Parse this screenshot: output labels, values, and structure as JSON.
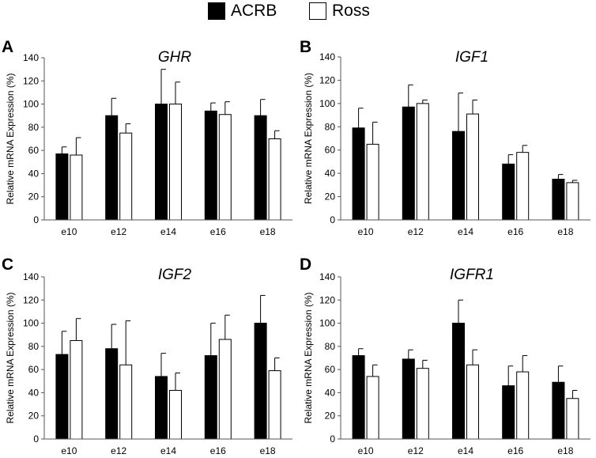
{
  "legend": [
    {
      "label": "ACRB",
      "color": "#000000"
    },
    {
      "label": "Ross",
      "color": "#ffffff"
    }
  ],
  "chart_data": [
    {
      "type": "bar",
      "panel_letter": "A",
      "title": "GHR",
      "ylabel": "Relative  mRNA Expression (%)",
      "xlabel": "",
      "ylim": [
        0,
        140
      ],
      "yticks": [
        "0",
        "20",
        "40",
        "60",
        "80",
        "100",
        "120",
        "140"
      ],
      "categories": [
        "e10",
        "e12",
        "e14",
        "e16",
        "e18"
      ],
      "series": [
        {
          "name": "ACRB",
          "color": "#000000",
          "values": [
            57,
            90,
            100,
            94,
            90
          ],
          "errors": [
            6,
            15,
            30,
            7,
            14
          ]
        },
        {
          "name": "Ross",
          "color": "#ffffff",
          "values": [
            56,
            75,
            100,
            91,
            70
          ],
          "errors": [
            15,
            8,
            19,
            11,
            7
          ]
        }
      ]
    },
    {
      "type": "bar",
      "panel_letter": "B",
      "title": "IGF1",
      "ylabel": "Relative mRNA Expression (%)",
      "xlabel": "",
      "ylim": [
        0,
        140
      ],
      "yticks": [
        "0",
        "20",
        "40",
        "60",
        "80",
        "100",
        "120",
        "140"
      ],
      "categories": [
        "e10",
        "e12",
        "e14",
        "e16",
        "e18"
      ],
      "series": [
        {
          "name": "ACRB",
          "color": "#000000",
          "values": [
            79,
            97,
            76,
            48,
            35
          ],
          "errors": [
            17,
            19,
            33,
            8,
            4
          ]
        },
        {
          "name": "Ross",
          "color": "#ffffff",
          "values": [
            65,
            100,
            91,
            58,
            32
          ],
          "errors": [
            19,
            3,
            12,
            6,
            2
          ]
        }
      ]
    },
    {
      "type": "bar",
      "panel_letter": "C",
      "title": "IGF2",
      "ylabel": "Relative mRNA Expression (%)",
      "xlabel": "",
      "ylim": [
        0,
        140
      ],
      "yticks": [
        "0",
        "20",
        "40",
        "60",
        "80",
        "100",
        "120",
        "140"
      ],
      "categories": [
        "e10",
        "e12",
        "e14",
        "e16",
        "e18"
      ],
      "series": [
        {
          "name": "ACRB",
          "color": "#000000",
          "values": [
            73,
            78,
            54,
            72,
            100
          ],
          "errors": [
            20,
            21,
            20,
            28,
            24
          ]
        },
        {
          "name": "Ross",
          "color": "#ffffff",
          "values": [
            85,
            64,
            42,
            86,
            59
          ],
          "errors": [
            19,
            38,
            15,
            21,
            11
          ]
        }
      ]
    },
    {
      "type": "bar",
      "panel_letter": "D",
      "title": "IGFR1",
      "ylabel": "Relative mRNA Expression (%)",
      "xlabel": "",
      "ylim": [
        0,
        140
      ],
      "yticks": [
        "0",
        "20",
        "40",
        "60",
        "80",
        "100",
        "120",
        "140"
      ],
      "categories": [
        "e10",
        "e12",
        "e14",
        "e16",
        "e18"
      ],
      "series": [
        {
          "name": "ACRB",
          "color": "#000000",
          "values": [
            72,
            69,
            100,
            46,
            49
          ],
          "errors": [
            6,
            8,
            20,
            17,
            14
          ]
        },
        {
          "name": "Ross",
          "color": "#ffffff",
          "values": [
            54,
            61,
            64,
            58,
            35
          ],
          "errors": [
            10,
            7,
            13,
            14,
            7
          ]
        }
      ]
    }
  ]
}
